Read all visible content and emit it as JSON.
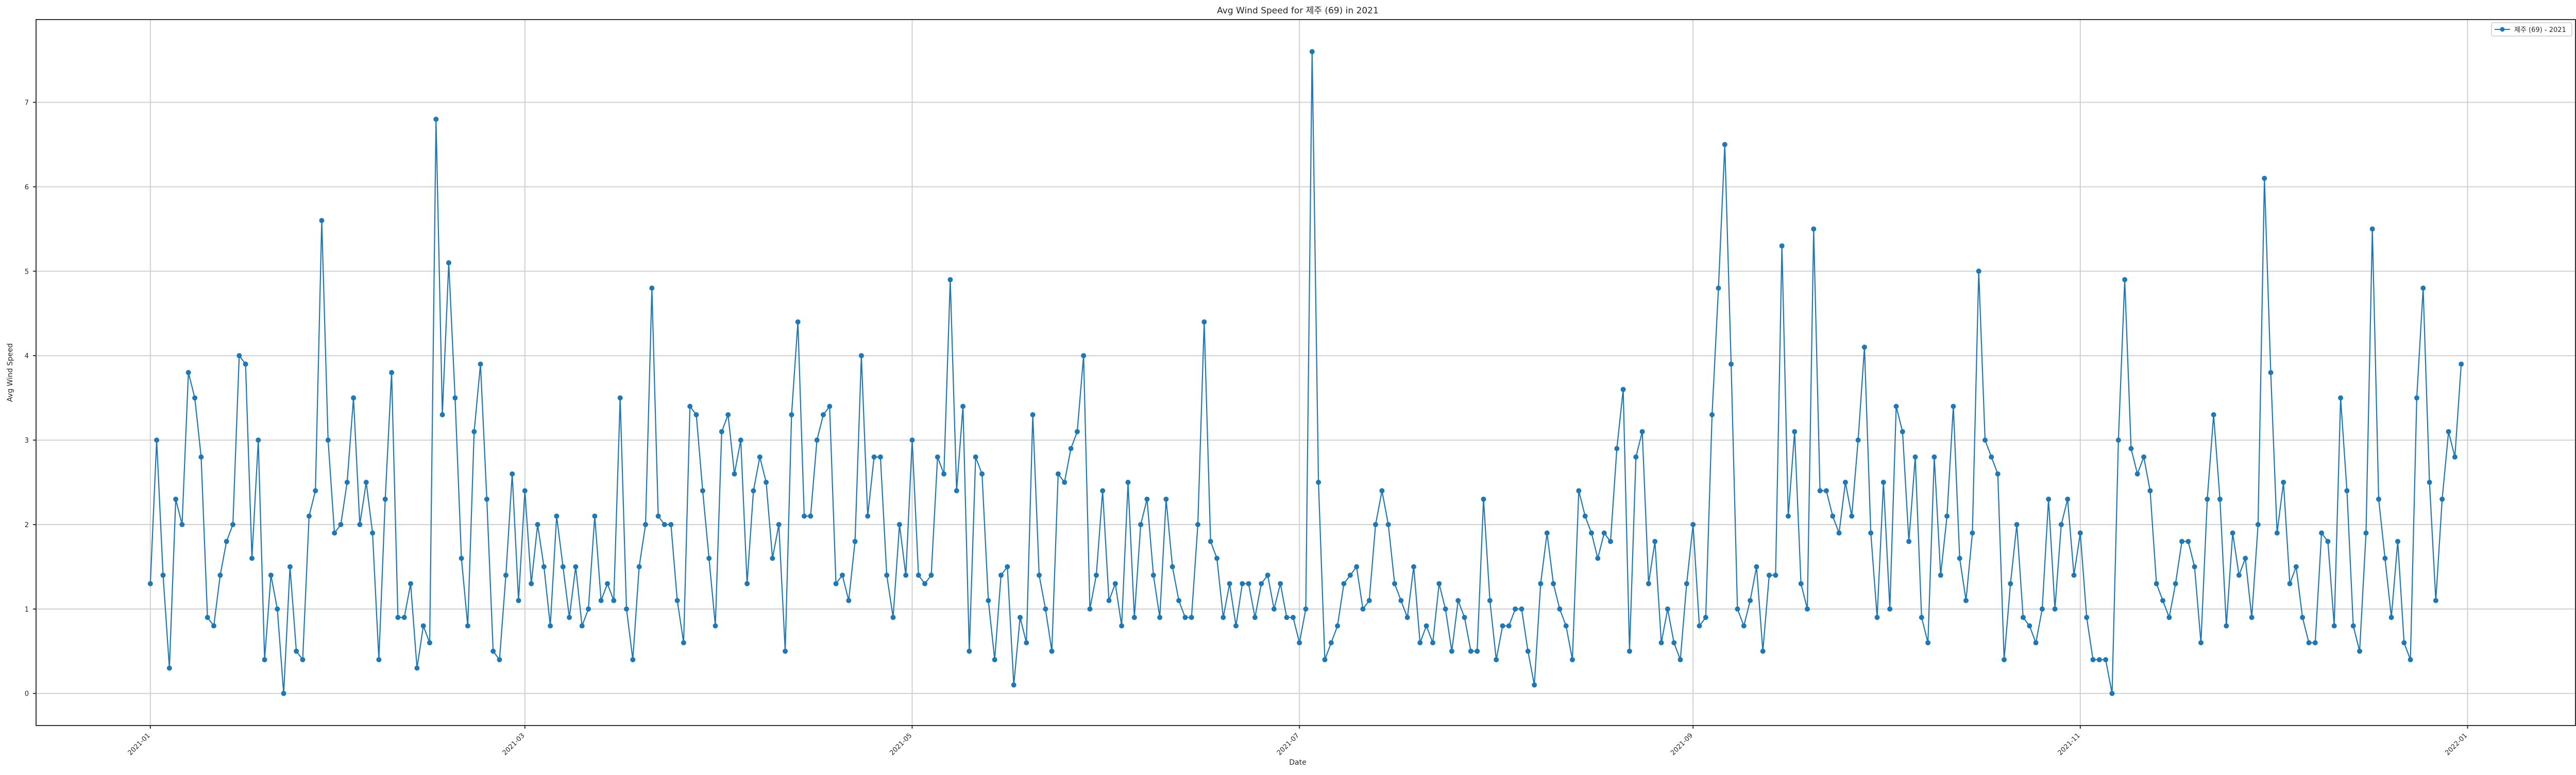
{
  "chart_data": {
    "type": "line",
    "title": "Avg Wind Speed for 제주 (69) in 2021",
    "xlabel": "Date",
    "ylabel": "Avg Wind Speed",
    "x_start": "2021-01-01",
    "x_end": "2021-12-31",
    "xlim": [
      "2020-12-14",
      "2022-01-18"
    ],
    "ylim": [
      -0.38,
      7.98
    ],
    "x_ticks": [
      {
        "date": "2021-01-01",
        "label": "2021-01"
      },
      {
        "date": "2021-03-01",
        "label": "2021-03"
      },
      {
        "date": "2021-05-01",
        "label": "2021-05"
      },
      {
        "date": "2021-07-01",
        "label": "2021-07"
      },
      {
        "date": "2021-09-01",
        "label": "2021-09"
      },
      {
        "date": "2021-11-01",
        "label": "2021-11"
      },
      {
        "date": "2022-01-01",
        "label": "2022-01"
      }
    ],
    "y_ticks": [
      0,
      1,
      2,
      3,
      4,
      5,
      6,
      7
    ],
    "grid": true,
    "legend_position": "top-right",
    "color": "#1f77b4",
    "series": [
      {
        "name": "제주 (69) - 2021",
        "values": [
          1.3,
          3.0,
          1.4,
          0.3,
          2.3,
          2.0,
          3.8,
          3.5,
          2.8,
          0.9,
          0.8,
          1.4,
          1.8,
          2.0,
          4.0,
          3.9,
          1.6,
          3.0,
          0.4,
          1.4,
          1.0,
          0.0,
          1.5,
          0.5,
          0.4,
          2.1,
          2.4,
          5.6,
          3.0,
          1.9,
          2.0,
          2.5,
          3.5,
          2.0,
          2.5,
          1.9,
          0.4,
          2.3,
          3.8,
          0.9,
          0.9,
          1.3,
          0.3,
          0.8,
          0.6,
          6.8,
          3.3,
          5.1,
          3.5,
          1.6,
          0.8,
          3.1,
          3.9,
          2.3,
          0.5,
          0.4,
          1.4,
          2.6,
          1.1,
          2.4,
          1.3,
          2.0,
          1.5,
          0.8,
          2.1,
          1.5,
          0.9,
          1.5,
          0.8,
          1.0,
          2.1,
          1.1,
          1.3,
          1.1,
          3.5,
          1.0,
          0.4,
          1.5,
          2.0,
          4.8,
          2.1,
          2.0,
          2.0,
          1.1,
          0.6,
          3.4,
          3.3,
          2.4,
          1.6,
          0.8,
          3.1,
          3.3,
          2.6,
          3.0,
          1.3,
          2.4,
          2.8,
          2.5,
          1.6,
          2.0,
          0.5,
          3.3,
          4.4,
          2.1,
          2.1,
          3.0,
          3.3,
          3.4,
          1.3,
          1.4,
          1.1,
          1.8,
          4.0,
          2.1,
          2.8,
          2.8,
          1.4,
          0.9,
          2.0,
          1.4,
          3.0,
          1.4,
          1.3,
          1.4,
          2.8,
          2.6,
          4.9,
          2.4,
          3.4,
          0.5,
          2.8,
          2.6,
          1.1,
          0.4,
          1.4,
          1.5,
          0.1,
          0.9,
          0.6,
          3.3,
          1.4,
          1.0,
          0.5,
          2.6,
          2.5,
          2.9,
          3.1,
          4.0,
          1.0,
          1.4,
          2.4,
          1.1,
          1.3,
          0.8,
          2.5,
          0.9,
          2.0,
          2.3,
          1.4,
          0.9,
          2.3,
          1.5,
          1.1,
          0.9,
          0.9,
          2.0,
          4.4,
          1.8,
          1.6,
          0.9,
          1.3,
          0.8,
          1.3,
          1.3,
          0.9,
          1.3,
          1.4,
          1.0,
          1.3,
          0.9,
          0.9,
          0.6,
          1.0,
          7.6,
          2.5,
          0.4,
          0.6,
          0.8,
          1.3,
          1.4,
          1.5,
          1.0,
          1.1,
          2.0,
          2.4,
          2.0,
          1.3,
          1.1,
          0.9,
          1.5,
          0.6,
          0.8,
          0.6,
          1.3,
          1.0,
          0.5,
          1.1,
          0.9,
          0.5,
          0.5,
          2.3,
          1.1,
          0.4,
          0.8,
          0.8,
          1.0,
          1.0,
          0.5,
          0.1,
          1.3,
          1.9,
          1.3,
          1.0,
          0.8,
          0.4,
          2.4,
          2.1,
          1.9,
          1.6,
          1.9,
          1.8,
          2.9,
          3.6,
          0.5,
          2.8,
          3.1,
          1.3,
          1.8,
          0.6,
          1.0,
          0.6,
          0.4,
          1.3,
          2.0,
          0.8,
          0.9,
          3.3,
          4.8,
          6.5,
          3.9,
          1.0,
          0.8,
          1.1,
          1.5,
          0.5,
          1.4,
          1.4,
          5.3,
          2.1,
          3.1,
          1.3,
          1.0,
          5.5,
          2.4,
          2.4,
          2.1,
          1.9,
          2.5,
          2.1,
          3.0,
          4.1,
          1.9,
          0.9,
          2.5,
          1.0,
          3.4,
          3.1,
          1.8,
          2.8,
          0.9,
          0.6,
          2.8,
          1.4,
          2.1,
          3.4,
          1.6,
          1.1,
          1.9,
          5.0,
          3.0,
          2.8,
          2.6,
          0.4,
          1.3,
          2.0,
          0.9,
          0.8,
          0.6,
          1.0,
          2.3,
          1.0,
          2.0,
          2.3,
          1.4,
          1.9,
          0.9,
          0.4,
          0.4,
          0.4,
          0.0,
          3.0,
          4.9,
          2.9,
          2.6,
          2.8,
          2.4,
          1.3,
          1.1,
          0.9,
          1.3,
          1.8,
          1.8,
          1.5,
          0.6,
          2.3,
          3.3,
          2.3,
          0.8,
          1.9,
          1.4,
          1.6,
          0.9,
          2.0,
          6.1,
          3.8,
          1.9,
          2.5,
          1.3,
          1.5,
          0.9,
          0.6,
          0.6,
          1.9,
          1.8,
          0.8,
          3.5,
          2.4,
          0.8,
          0.5,
          1.9,
          5.5,
          2.3,
          1.6,
          0.9,
          1.8,
          0.6,
          0.4,
          3.5,
          4.8,
          2.5,
          1.1,
          2.3,
          3.1,
          2.8,
          3.9
        ]
      }
    ]
  }
}
